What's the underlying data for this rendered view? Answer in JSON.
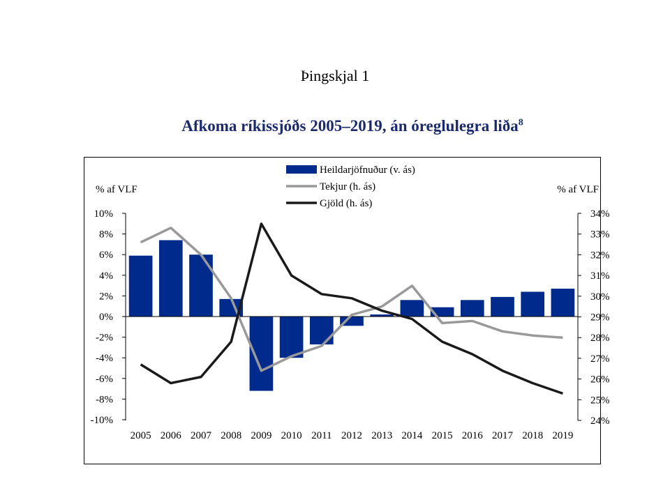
{
  "page": {
    "header": "Þingskjal 1"
  },
  "chart_data": {
    "type": "bar",
    "title": "Afkoma ríkissjóðs 2005–2019, án óreglulegra liða",
    "title_footnote": "8",
    "categories": [
      "2005",
      "2006",
      "2007",
      "2008",
      "2009",
      "2010",
      "2011",
      "2012",
      "2013",
      "2014",
      "2015",
      "2016",
      "2017",
      "2018",
      "2019"
    ],
    "left_axis": {
      "label": "% af VLF",
      "range": [
        -10,
        10
      ],
      "ticks": [
        "-10%",
        "-8%",
        "-6%",
        "-4%",
        "-2%",
        "0%",
        "2%",
        "4%",
        "6%",
        "8%",
        "10%"
      ]
    },
    "right_axis": {
      "label": "% af VLF",
      "range": [
        24,
        34
      ],
      "ticks": [
        "24%",
        "25%",
        "26%",
        "27%",
        "28%",
        "29%",
        "30%",
        "31%",
        "32%",
        "33%",
        "34%"
      ]
    },
    "series": [
      {
        "name": "Heildarjöfnuður (v. ás)",
        "type": "bar",
        "axis": "left",
        "color": "#002b8c",
        "values": [
          5.9,
          7.4,
          6.0,
          1.7,
          -7.2,
          -4.0,
          -2.7,
          -0.9,
          0.2,
          1.6,
          0.9,
          1.6,
          1.9,
          2.4,
          2.7
        ]
      },
      {
        "name": "Tekjur (h. ás)",
        "type": "line",
        "axis": "right",
        "color": "#999999",
        "values": [
          32.6,
          33.3,
          32.0,
          29.9,
          26.4,
          27.1,
          27.6,
          29.1,
          29.5,
          30.5,
          28.7,
          28.8,
          28.3,
          28.1,
          28.0
        ]
      },
      {
        "name": "Gjöld (h. ás)",
        "type": "line",
        "axis": "right",
        "color": "#1a1a1a",
        "values": [
          26.7,
          25.8,
          26.1,
          27.8,
          33.5,
          31.0,
          30.1,
          29.9,
          29.3,
          28.9,
          27.8,
          27.2,
          26.4,
          25.8,
          25.3
        ]
      }
    ],
    "legend_position": "top-center",
    "grid": false
  }
}
